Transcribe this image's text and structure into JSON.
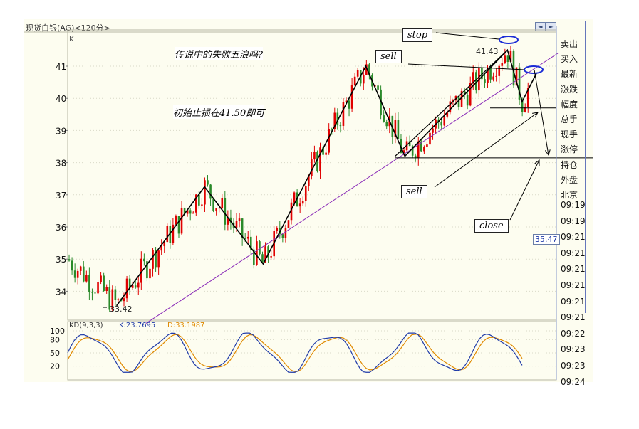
{
  "window": {
    "title": "现货白银(AG)<120分>"
  },
  "toolbar": {
    "btn_left": "◄",
    "btn_right": "►"
  },
  "price_panel": {
    "axis_letter": "K",
    "current_price": "35.47"
  },
  "sidebar": {
    "items": [
      "卖出",
      "买入",
      "最新",
      "涨跌",
      "幅度",
      "总手",
      "现手",
      "涨停",
      "持仓",
      "外盘",
      "北京"
    ],
    "times": [
      "09:19",
      "09:19",
      "09:21",
      "09:21",
      "09:21",
      "09:21",
      "09:21",
      "09:21",
      "09:22",
      "09:23",
      "09:23",
      "09:24"
    ]
  },
  "annotations": {
    "question": "传说中的失败五浪吗?",
    "stoploss": "初始止损在41.50即可",
    "stop": "stop",
    "sell_top": "sell",
    "sell_mid": "sell",
    "close": "close",
    "high_label": "41.43",
    "low_label": "33.42"
  },
  "kd": {
    "label": "KD(9,3,3)",
    "k_text": "K:23.7695",
    "d_text": "D:33.1987"
  },
  "colors": {
    "up": "#e00000",
    "down": "#2a8a2a",
    "trend": "#8a2bb8",
    "k_line": "#1f3aa8",
    "d_line": "#e08a00",
    "grid": "#d9d9c8",
    "highlight": "#1a2bd6"
  },
  "chart_data": [
    {
      "type": "candlestick",
      "title": "现货白银(AG)<120分>",
      "ylim": [
        33.3,
        42.0
      ],
      "yticks": [
        34,
        35,
        36,
        37,
        38,
        39,
        40,
        41
      ],
      "grid": true,
      "swing_points": [
        {
          "label": "33.42",
          "value": 33.42
        },
        {
          "label": "41.43",
          "value": 41.43
        }
      ],
      "wave_path": [
        {
          "x": 0.1,
          "y": 33.55
        },
        {
          "x": 0.28,
          "y": 37.25
        },
        {
          "x": 0.4,
          "y": 34.85
        },
        {
          "x": 0.61,
          "y": 41.0
        },
        {
          "x": 0.69,
          "y": 38.2
        },
        {
          "x": 0.9,
          "y": 41.5
        },
        {
          "x": 0.93,
          "y": 39.9
        },
        {
          "x": 0.96,
          "y": 40.8
        }
      ],
      "trendline": [
        {
          "x": 0.16,
          "y": 33.0
        },
        {
          "x": 1.0,
          "y": 41.4
        }
      ],
      "levels": [
        {
          "name": "support",
          "value": 38.15
        },
        {
          "name": "sub",
          "value": 39.7
        }
      ]
    },
    {
      "type": "line",
      "title": "KD(9,3,3)",
      "ylim": [
        0,
        100
      ],
      "yticks": [
        20,
        50,
        80,
        100
      ],
      "series": [
        {
          "name": "K",
          "last": 23.7695
        },
        {
          "name": "D",
          "last": 33.1987
        }
      ]
    }
  ]
}
